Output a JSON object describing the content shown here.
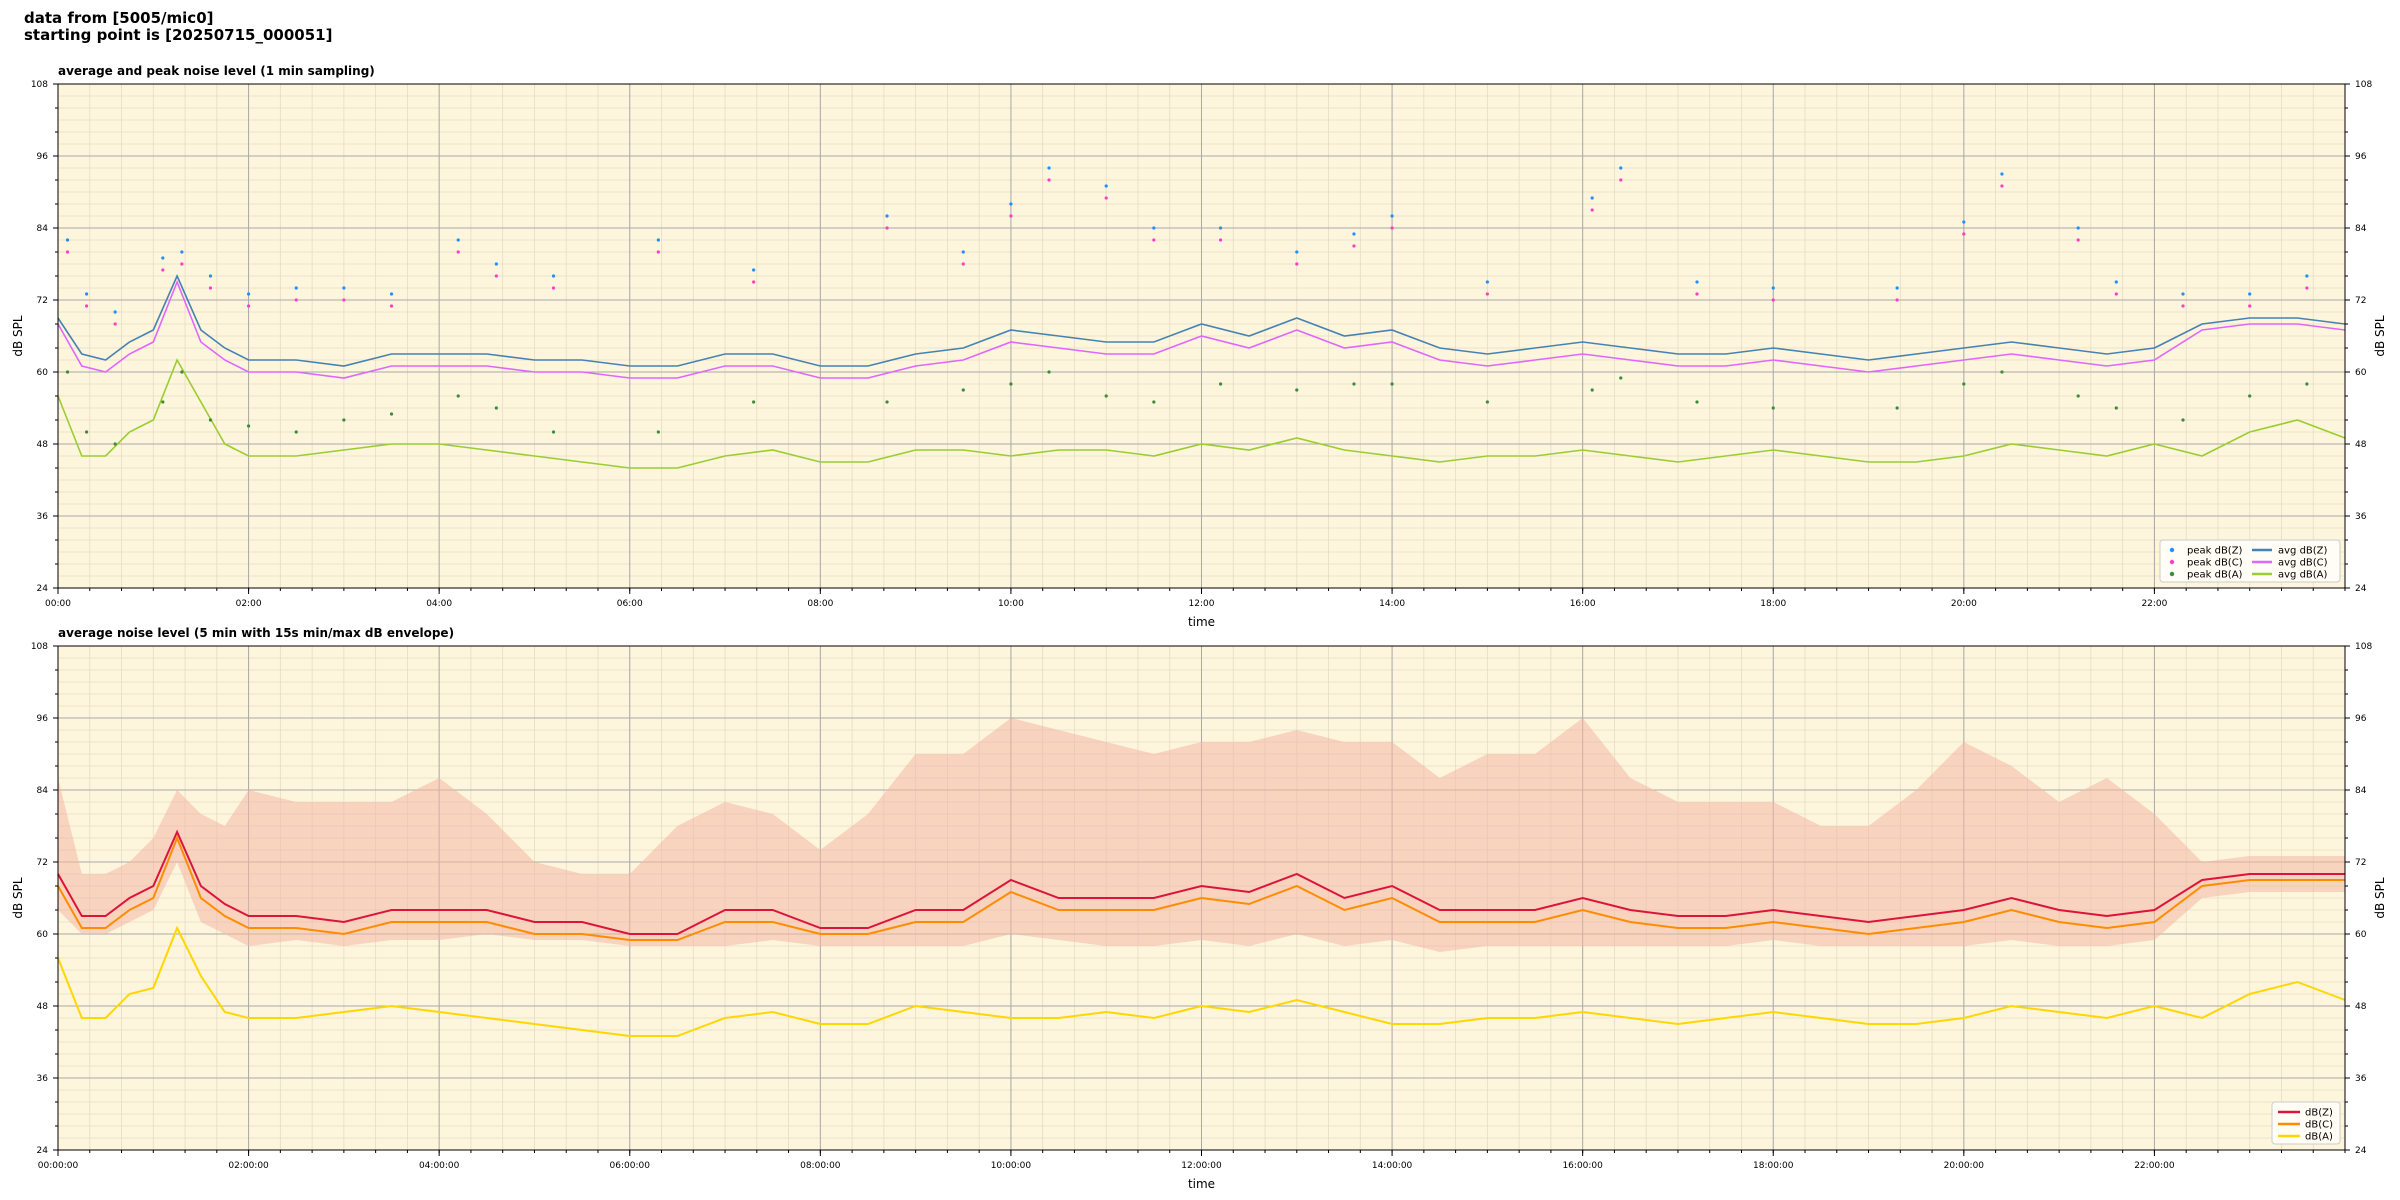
{
  "header": {
    "line1": "data from [5005/mic0]",
    "line2": "starting point is [20250715_000051]"
  },
  "colors": {
    "plot_bg": "#fdf5dc",
    "grid_major": "#a9a9a9",
    "grid_minor": "#e6dcc4",
    "avg_z": "#4682b4",
    "avg_c": "#e066ff",
    "avg_a": "#9acd32",
    "peak_z": "#1e90ff",
    "peak_c": "#ff3ec8",
    "peak_a": "#3c8c3c",
    "dbz": "#dc143c",
    "dbc": "#ff8c00",
    "dba": "#ffd700",
    "envelope": "#f4b6a6"
  },
  "chart_data": [
    {
      "type": "line",
      "title": "average and peak noise level (1 min sampling)",
      "xlabel": "time",
      "ylabel": "dB SPL",
      "xlim": [
        0,
        24
      ],
      "ylim": [
        24,
        108
      ],
      "yticks": [
        24,
        36,
        48,
        60,
        72,
        84,
        96,
        108
      ],
      "xtick_labels": [
        "00:00",
        "02:00",
        "04:00",
        "06:00",
        "08:00",
        "10:00",
        "12:00",
        "14:00",
        "16:00",
        "18:00",
        "20:00",
        "22:00"
      ],
      "grid": true,
      "legend_position": "bottom-right",
      "legend": [
        "peak dB(Z)",
        "peak dB(C)",
        "peak dB(A)",
        "avg dB(Z)",
        "avg dB(C)",
        "avg dB(A)"
      ],
      "series": [
        {
          "name": "avg dB(Z)",
          "x": [
            0,
            0.25,
            0.5,
            0.75,
            1,
            1.25,
            1.5,
            1.75,
            2,
            2.5,
            3,
            3.5,
            4,
            4.5,
            5,
            5.5,
            6,
            6.5,
            7,
            7.5,
            8,
            8.5,
            9,
            9.5,
            10,
            10.5,
            11,
            11.5,
            12,
            12.5,
            13,
            13.5,
            14,
            14.5,
            15,
            15.5,
            16,
            16.5,
            17,
            17.5,
            18,
            18.5,
            19,
            19.5,
            20,
            20.5,
            21,
            21.5,
            22,
            22.5,
            23,
            23.5,
            24
          ],
          "values": [
            69,
            63,
            62,
            65,
            67,
            76,
            67,
            64,
            62,
            62,
            61,
            63,
            63,
            63,
            62,
            62,
            61,
            61,
            63,
            63,
            61,
            61,
            63,
            64,
            67,
            66,
            65,
            65,
            68,
            66,
            69,
            66,
            67,
            64,
            63,
            64,
            65,
            64,
            63,
            63,
            64,
            63,
            62,
            63,
            64,
            65,
            64,
            63,
            64,
            68,
            69,
            69,
            68
          ]
        },
        {
          "name": "avg dB(C)",
          "x": [
            0,
            0.25,
            0.5,
            0.75,
            1,
            1.25,
            1.5,
            1.75,
            2,
            2.5,
            3,
            3.5,
            4,
            4.5,
            5,
            5.5,
            6,
            6.5,
            7,
            7.5,
            8,
            8.5,
            9,
            9.5,
            10,
            10.5,
            11,
            11.5,
            12,
            12.5,
            13,
            13.5,
            14,
            14.5,
            15,
            15.5,
            16,
            16.5,
            17,
            17.5,
            18,
            18.5,
            19,
            19.5,
            20,
            20.5,
            21,
            21.5,
            22,
            22.5,
            23,
            23.5,
            24
          ],
          "values": [
            68,
            61,
            60,
            63,
            65,
            75,
            65,
            62,
            60,
            60,
            59,
            61,
            61,
            61,
            60,
            60,
            59,
            59,
            61,
            61,
            59,
            59,
            61,
            62,
            65,
            64,
            63,
            63,
            66,
            64,
            67,
            64,
            65,
            62,
            61,
            62,
            63,
            62,
            61,
            61,
            62,
            61,
            60,
            61,
            62,
            63,
            62,
            61,
            62,
            67,
            68,
            68,
            67
          ]
        },
        {
          "name": "avg dB(A)",
          "x": [
            0,
            0.25,
            0.5,
            0.75,
            1,
            1.25,
            1.5,
            1.75,
            2,
            2.5,
            3,
            3.5,
            4,
            4.5,
            5,
            5.5,
            6,
            6.5,
            7,
            7.5,
            8,
            8.5,
            9,
            9.5,
            10,
            10.5,
            11,
            11.5,
            12,
            12.5,
            13,
            13.5,
            14,
            14.5,
            15,
            15.5,
            16,
            16.5,
            17,
            17.5,
            18,
            18.5,
            19,
            19.5,
            20,
            20.5,
            21,
            21.5,
            22,
            22.5,
            23,
            23.5,
            24
          ],
          "values": [
            56,
            46,
            46,
            50,
            52,
            62,
            55,
            48,
            46,
            46,
            47,
            48,
            48,
            47,
            46,
            45,
            44,
            44,
            46,
            47,
            45,
            45,
            47,
            47,
            46,
            47,
            47,
            46,
            48,
            47,
            49,
            47,
            46,
            45,
            46,
            46,
            47,
            46,
            45,
            46,
            47,
            46,
            45,
            45,
            46,
            48,
            47,
            46,
            48,
            46,
            50,
            52,
            49
          ]
        }
      ],
      "peak_series": [
        {
          "name": "peak dB(Z)",
          "x": [
            0.1,
            0.3,
            0.6,
            1.1,
            1.3,
            1.6,
            2.0,
            2.5,
            3.0,
            3.5,
            4.2,
            4.6,
            5.2,
            6.3,
            7.3,
            8.7,
            9.5,
            10.0,
            10.4,
            11.0,
            11.5,
            12.2,
            13.0,
            13.6,
            14.0,
            15.0,
            16.1,
            16.4,
            17.2,
            18.0,
            19.3,
            20.0,
            20.4,
            21.2,
            21.6,
            22.3,
            23.0,
            23.6
          ],
          "values": [
            82,
            73,
            70,
            79,
            80,
            76,
            73,
            74,
            74,
            73,
            82,
            78,
            76,
            82,
            77,
            86,
            80,
            88,
            94,
            91,
            84,
            84,
            80,
            83,
            86,
            75,
            89,
            94,
            75,
            74,
            74,
            85,
            93,
            84,
            75,
            73,
            73,
            76
          ]
        },
        {
          "name": "peak dB(C)",
          "x": [
            0.1,
            0.3,
            0.6,
            1.1,
            1.3,
            1.6,
            2.0,
            2.5,
            3.0,
            3.5,
            4.2,
            4.6,
            5.2,
            6.3,
            7.3,
            8.7,
            9.5,
            10.0,
            10.4,
            11.0,
            11.5,
            12.2,
            13.0,
            13.6,
            14.0,
            15.0,
            16.1,
            16.4,
            17.2,
            18.0,
            19.3,
            20.0,
            20.4,
            21.2,
            21.6,
            22.3,
            23.0,
            23.6
          ],
          "values": [
            80,
            71,
            68,
            77,
            78,
            74,
            71,
            72,
            72,
            71,
            80,
            76,
            74,
            80,
            75,
            84,
            78,
            86,
            92,
            89,
            82,
            82,
            78,
            81,
            84,
            73,
            87,
            92,
            73,
            72,
            72,
            83,
            91,
            82,
            73,
            71,
            71,
            74
          ]
        },
        {
          "name": "peak dB(A)",
          "x": [
            0.1,
            0.3,
            0.6,
            1.1,
            1.3,
            1.6,
            2.0,
            2.5,
            3.0,
            3.5,
            4.2,
            4.6,
            5.2,
            6.3,
            7.3,
            8.7,
            9.5,
            10.0,
            10.4,
            11.0,
            11.5,
            12.2,
            13.0,
            13.6,
            14.0,
            15.0,
            16.1,
            16.4,
            17.2,
            18.0,
            19.3,
            20.0,
            20.4,
            21.2,
            21.6,
            22.3,
            23.0,
            23.6
          ],
          "values": [
            60,
            50,
            48,
            55,
            60,
            52,
            51,
            50,
            52,
            53,
            56,
            54,
            50,
            50,
            55,
            55,
            57,
            58,
            60,
            56,
            55,
            58,
            57,
            58,
            58,
            55,
            57,
            59,
            55,
            54,
            54,
            58,
            60,
            56,
            54,
            52,
            56,
            58
          ]
        }
      ]
    },
    {
      "type": "line",
      "title": "average noise level (5 min with 15s min/max dB envelope)",
      "xlabel": "time",
      "ylabel": "dB SPL",
      "xlim": [
        0,
        24
      ],
      "ylim": [
        24,
        108
      ],
      "yticks": [
        24,
        36,
        48,
        60,
        72,
        84,
        96,
        108
      ],
      "xtick_labels": [
        "00:00:00",
        "02:00:00",
        "04:00:00",
        "06:00:00",
        "08:00:00",
        "10:00:00",
        "12:00:00",
        "14:00:00",
        "16:00:00",
        "18:00:00",
        "20:00:00",
        "22:00:00"
      ],
      "grid": true,
      "legend_position": "bottom-right",
      "legend": [
        "dB(Z)",
        "dB(C)",
        "dB(A)"
      ],
      "series": [
        {
          "name": "dB(Z)",
          "x": [
            0,
            0.25,
            0.5,
            0.75,
            1,
            1.25,
            1.5,
            1.75,
            2,
            2.5,
            3,
            3.5,
            4,
            4.5,
            5,
            5.5,
            6,
            6.5,
            7,
            7.5,
            8,
            8.5,
            9,
            9.5,
            10,
            10.5,
            11,
            11.5,
            12,
            12.5,
            13,
            13.5,
            14,
            14.5,
            15,
            15.5,
            16,
            16.5,
            17,
            17.5,
            18,
            18.5,
            19,
            19.5,
            20,
            20.5,
            21,
            21.5,
            22,
            22.5,
            23,
            23.5,
            24
          ],
          "values": [
            70,
            63,
            63,
            66,
            68,
            77,
            68,
            65,
            63,
            63,
            62,
            64,
            64,
            64,
            62,
            62,
            60,
            60,
            64,
            64,
            61,
            61,
            64,
            64,
            69,
            66,
            66,
            66,
            68,
            67,
            70,
            66,
            68,
            64,
            64,
            64,
            66,
            64,
            63,
            63,
            64,
            63,
            62,
            63,
            64,
            66,
            64,
            63,
            64,
            69,
            70,
            70,
            70
          ]
        },
        {
          "name": "dB(C)",
          "x": [
            0,
            0.25,
            0.5,
            0.75,
            1,
            1.25,
            1.5,
            1.75,
            2,
            2.5,
            3,
            3.5,
            4,
            4.5,
            5,
            5.5,
            6,
            6.5,
            7,
            7.5,
            8,
            8.5,
            9,
            9.5,
            10,
            10.5,
            11,
            11.5,
            12,
            12.5,
            13,
            13.5,
            14,
            14.5,
            15,
            15.5,
            16,
            16.5,
            17,
            17.5,
            18,
            18.5,
            19,
            19.5,
            20,
            20.5,
            21,
            21.5,
            22,
            22.5,
            23,
            23.5,
            24
          ],
          "values": [
            68,
            61,
            61,
            64,
            66,
            76,
            66,
            63,
            61,
            61,
            60,
            62,
            62,
            62,
            60,
            60,
            59,
            59,
            62,
            62,
            60,
            60,
            62,
            62,
            67,
            64,
            64,
            64,
            66,
            65,
            68,
            64,
            66,
            62,
            62,
            62,
            64,
            62,
            61,
            61,
            62,
            61,
            60,
            61,
            62,
            64,
            62,
            61,
            62,
            68,
            69,
            69,
            69
          ]
        },
        {
          "name": "dB(A)",
          "x": [
            0,
            0.25,
            0.5,
            0.75,
            1,
            1.25,
            1.5,
            1.75,
            2,
            2.5,
            3,
            3.5,
            4,
            4.5,
            5,
            5.5,
            6,
            6.5,
            7,
            7.5,
            8,
            8.5,
            9,
            9.5,
            10,
            10.5,
            11,
            11.5,
            12,
            12.5,
            13,
            13.5,
            14,
            14.5,
            15,
            15.5,
            16,
            16.5,
            17,
            17.5,
            18,
            18.5,
            19,
            19.5,
            20,
            20.5,
            21,
            21.5,
            22,
            22.5,
            23,
            23.5,
            24
          ],
          "values": [
            56,
            46,
            46,
            50,
            51,
            61,
            53,
            47,
            46,
            46,
            47,
            48,
            47,
            46,
            45,
            44,
            43,
            43,
            46,
            47,
            45,
            45,
            48,
            47,
            46,
            46,
            47,
            46,
            48,
            47,
            49,
            47,
            45,
            45,
            46,
            46,
            47,
            46,
            45,
            46,
            47,
            46,
            45,
            45,
            46,
            48,
            47,
            46,
            48,
            46,
            50,
            52,
            49
          ]
        }
      ],
      "envelope": {
        "x": [
          0,
          0.25,
          0.5,
          0.75,
          1,
          1.25,
          1.5,
          1.75,
          2,
          2.5,
          3,
          3.5,
          4,
          4.5,
          5,
          5.5,
          6,
          6.5,
          7,
          7.5,
          8,
          8.5,
          9,
          9.5,
          10,
          10.5,
          11,
          11.5,
          12,
          12.5,
          13,
          13.5,
          14,
          14.5,
          15,
          15.5,
          16,
          16.5,
          17,
          17.5,
          18,
          18.5,
          19,
          19.5,
          20,
          20.5,
          21,
          21.5,
          22,
          22.5,
          23,
          23.5,
          24
        ],
        "min": [
          64,
          60,
          60,
          62,
          64,
          72,
          62,
          60,
          58,
          59,
          58,
          59,
          59,
          60,
          59,
          59,
          58,
          58,
          58,
          59,
          58,
          58,
          58,
          58,
          60,
          59,
          58,
          58,
          59,
          58,
          60,
          58,
          59,
          57,
          58,
          58,
          58,
          58,
          58,
          58,
          59,
          58,
          58,
          58,
          58,
          59,
          58,
          58,
          59,
          66,
          67,
          67,
          67
        ],
        "max": [
          86,
          70,
          70,
          72,
          76,
          84,
          80,
          78,
          84,
          82,
          82,
          82,
          86,
          80,
          72,
          70,
          70,
          78,
          82,
          80,
          74,
          80,
          90,
          90,
          96,
          94,
          92,
          90,
          92,
          92,
          94,
          92,
          92,
          86,
          90,
          90,
          96,
          86,
          82,
          82,
          82,
          78,
          78,
          84,
          92,
          88,
          82,
          86,
          80,
          72,
          73,
          73,
          73
        ]
      }
    }
  ]
}
